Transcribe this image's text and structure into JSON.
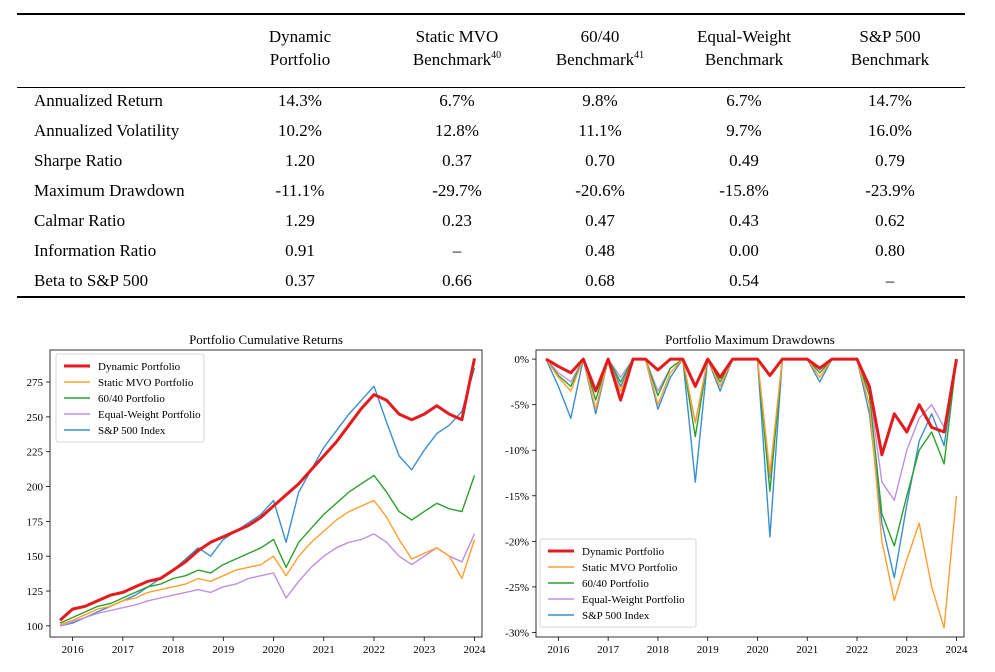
{
  "table": {
    "headers": [
      {
        "line1": "Dynamic",
        "line2": "Portfolio",
        "sup": ""
      },
      {
        "line1": "Static MVO",
        "line2": "Benchmark",
        "sup": "40"
      },
      {
        "line1": "60/40",
        "line2": "Benchmark",
        "sup": "41"
      },
      {
        "line1": "Equal-Weight",
        "line2": "Benchmark",
        "sup": ""
      },
      {
        "line1": "S&P 500",
        "line2": "Benchmark",
        "sup": ""
      }
    ],
    "rows": [
      {
        "label": "Annualized Return",
        "values": [
          "14.3%",
          "6.7%",
          "9.8%",
          "6.7%",
          "14.7%"
        ]
      },
      {
        "label": "Annualized Volatility",
        "values": [
          "10.2%",
          "12.8%",
          "11.1%",
          "9.7%",
          "16.0%"
        ]
      },
      {
        "label": "Sharpe Ratio",
        "values": [
          "1.20",
          "0.37",
          "0.70",
          "0.49",
          "0.79"
        ]
      },
      {
        "label": "Maximum Drawdown",
        "values": [
          "-11.1%",
          "-29.7%",
          "-20.6%",
          "-15.8%",
          "-23.9%"
        ]
      },
      {
        "label": "Calmar Ratio",
        "values": [
          "1.29",
          "0.23",
          "0.47",
          "0.43",
          "0.62"
        ]
      },
      {
        "label": "Information Ratio",
        "values": [
          "0.91",
          "–",
          "0.48",
          "0.00",
          "0.80"
        ]
      },
      {
        "label": "Beta to S&P 500",
        "values": [
          "0.37",
          "0.66",
          "0.68",
          "0.54",
          "–"
        ]
      }
    ]
  },
  "colors": {
    "dynamic": "#e41a1c",
    "static_mvo": "#ff9f2f",
    "sixty_forty": "#2ca02c",
    "equal_weight": "#c08ee6",
    "sp500": "#3b8fd0"
  },
  "chart_data": [
    {
      "type": "line",
      "title": "Portfolio Cumulative Returns",
      "xlabel": "",
      "ylabel": "",
      "xticks": [
        "2016",
        "2017",
        "2018",
        "2019",
        "2020",
        "2021",
        "2022",
        "2023",
        "2024"
      ],
      "yticks": [
        "100",
        "125",
        "150",
        "175",
        "200",
        "225",
        "250",
        "275"
      ],
      "xlim": [
        2015.55,
        2024.15
      ],
      "ylim": [
        92,
        298
      ],
      "x": [
        2015.75,
        2016.0,
        2016.25,
        2016.5,
        2016.75,
        2017.0,
        2017.25,
        2017.5,
        2017.75,
        2018.0,
        2018.25,
        2018.5,
        2018.75,
        2019.0,
        2019.25,
        2019.5,
        2019.75,
        2020.0,
        2020.25,
        2020.5,
        2020.75,
        2021.0,
        2021.25,
        2021.5,
        2021.75,
        2022.0,
        2022.25,
        2022.5,
        2022.75,
        2023.0,
        2023.25,
        2023.5,
        2023.75,
        2024.0
      ],
      "legend": "top-left",
      "grid": false,
      "series": [
        {
          "name": "Dynamic Portfolio",
          "color_key": "dynamic",
          "width": 3,
          "values": [
            104,
            112,
            114,
            118,
            122,
            124,
            128,
            132,
            134,
            140,
            146,
            154,
            160,
            164,
            168,
            172,
            178,
            186,
            194,
            202,
            212,
            222,
            232,
            244,
            256,
            266,
            262,
            252,
            248,
            252,
            258,
            252,
            248,
            292
          ]
        },
        {
          "name": "Static MVO Portfolio",
          "color_key": "static_mvo",
          "width": 1.4,
          "values": [
            101,
            104,
            108,
            112,
            114,
            118,
            120,
            124,
            126,
            128,
            130,
            134,
            132,
            136,
            140,
            142,
            144,
            150,
            136,
            150,
            160,
            168,
            176,
            182,
            186,
            190,
            178,
            162,
            148,
            152,
            156,
            150,
            134,
            162
          ]
        },
        {
          "name": "60/40 Portfolio",
          "color_key": "sixty_forty",
          "width": 1.4,
          "values": [
            102,
            106,
            110,
            114,
            116,
            120,
            124,
            128,
            130,
            134,
            136,
            140,
            138,
            144,
            148,
            152,
            156,
            162,
            142,
            160,
            170,
            180,
            188,
            196,
            202,
            208,
            196,
            182,
            176,
            182,
            188,
            184,
            182,
            208
          ]
        },
        {
          "name": "Equal-Weight Portfolio",
          "color_key": "equal_weight",
          "width": 1.4,
          "values": [
            100,
            103,
            106,
            109,
            111,
            113,
            115,
            118,
            120,
            122,
            124,
            126,
            124,
            128,
            130,
            134,
            136,
            138,
            120,
            132,
            142,
            150,
            156,
            160,
            162,
            166,
            160,
            150,
            144,
            150,
            156,
            150,
            146,
            166
          ]
        },
        {
          "name": "S&P 500 Index",
          "color_key": "sp500",
          "width": 1.4,
          "values": [
            100,
            102,
            106,
            110,
            114,
            118,
            122,
            128,
            134,
            140,
            148,
            156,
            150,
            162,
            168,
            174,
            180,
            190,
            160,
            196,
            212,
            228,
            240,
            252,
            262,
            272,
            246,
            222,
            212,
            226,
            238,
            244,
            254,
            285
          ]
        }
      ]
    },
    {
      "type": "line",
      "title": "Portfolio Maximum Drawdowns",
      "xlabel": "",
      "ylabel": "",
      "xticks": [
        "2016",
        "2017",
        "2018",
        "2019",
        "2020",
        "2021",
        "2022",
        "2023",
        "2024"
      ],
      "yticks": [
        "0%",
        "-5%",
        "-10%",
        "-15%",
        "-20%",
        "-25%",
        "-30%"
      ],
      "xlim": [
        2015.55,
        2024.15
      ],
      "ylim": [
        -30.5,
        1.0
      ],
      "x": [
        2015.75,
        2016.0,
        2016.25,
        2016.5,
        2016.75,
        2017.0,
        2017.25,
        2017.5,
        2017.75,
        2018.0,
        2018.25,
        2018.5,
        2018.75,
        2019.0,
        2019.25,
        2019.5,
        2019.75,
        2020.0,
        2020.25,
        2020.5,
        2020.75,
        2021.0,
        2021.25,
        2021.5,
        2021.75,
        2022.0,
        2022.25,
        2022.5,
        2022.75,
        2023.0,
        2023.25,
        2023.5,
        2023.75,
        2024.0
      ],
      "legend": "lower-left",
      "grid": false,
      "series": [
        {
          "name": "Dynamic Portfolio",
          "color_key": "dynamic",
          "width": 3,
          "values": [
            0,
            -0.8,
            -1.5,
            0,
            -3.5,
            0,
            -4.5,
            0,
            0,
            -1.2,
            0,
            0,
            -3.0,
            0,
            -2.0,
            0,
            0,
            0,
            -1.8,
            0,
            0,
            0,
            -1.0,
            0,
            0,
            0,
            -3.0,
            -10.5,
            -6.0,
            -8.0,
            -5.0,
            -7.5,
            -8.0,
            0
          ]
        },
        {
          "name": "Static MVO Portfolio",
          "color_key": "static_mvo",
          "width": 1.4,
          "values": [
            0,
            -2.0,
            -3.5,
            0,
            -5.5,
            0,
            -3.5,
            0,
            0,
            -5.0,
            -1.5,
            0,
            -7.0,
            0,
            -3.0,
            0,
            0,
            0,
            -12.5,
            0,
            0,
            0,
            -2.0,
            0,
            0,
            0,
            -5.0,
            -20.0,
            -26.5,
            -22.0,
            -18.0,
            -25.0,
            -29.5,
            -15.0
          ]
        },
        {
          "name": "60/40 Portfolio",
          "color_key": "sixty_forty",
          "width": 1.4,
          "values": [
            0,
            -1.8,
            -3.0,
            0,
            -4.5,
            0,
            -2.5,
            0,
            0,
            -4.0,
            -1.0,
            0,
            -8.5,
            0,
            -2.5,
            0,
            0,
            0,
            -14.5,
            0,
            0,
            0,
            -1.5,
            0,
            0,
            0,
            -4.0,
            -17.0,
            -20.5,
            -15.0,
            -10.0,
            -8.0,
            -11.5,
            0
          ]
        },
        {
          "name": "Equal-Weight Portfolio",
          "color_key": "equal_weight",
          "width": 1.4,
          "values": [
            0,
            -1.5,
            -2.5,
            0,
            -3.5,
            0,
            -2.0,
            0,
            0,
            -3.5,
            -1.0,
            0,
            -7.0,
            0,
            -2.0,
            0,
            0,
            0,
            -13.0,
            0,
            0,
            0,
            -1.2,
            0,
            0,
            0,
            -3.5,
            -13.5,
            -15.5,
            -10.0,
            -6.5,
            -5.0,
            -7.5,
            0
          ]
        },
        {
          "name": "S&P 500 Index",
          "color_key": "sp500",
          "width": 1.4,
          "values": [
            0,
            -3.0,
            -6.5,
            0,
            -6.0,
            0,
            -3.0,
            0,
            0,
            -5.5,
            -2.0,
            0,
            -13.5,
            0,
            -3.5,
            0,
            0,
            0,
            -19.5,
            0,
            0,
            0,
            -2.5,
            0,
            0,
            0,
            -6.0,
            -18.0,
            -24.0,
            -16.0,
            -9.0,
            -6.0,
            -9.5,
            0
          ]
        }
      ]
    }
  ]
}
